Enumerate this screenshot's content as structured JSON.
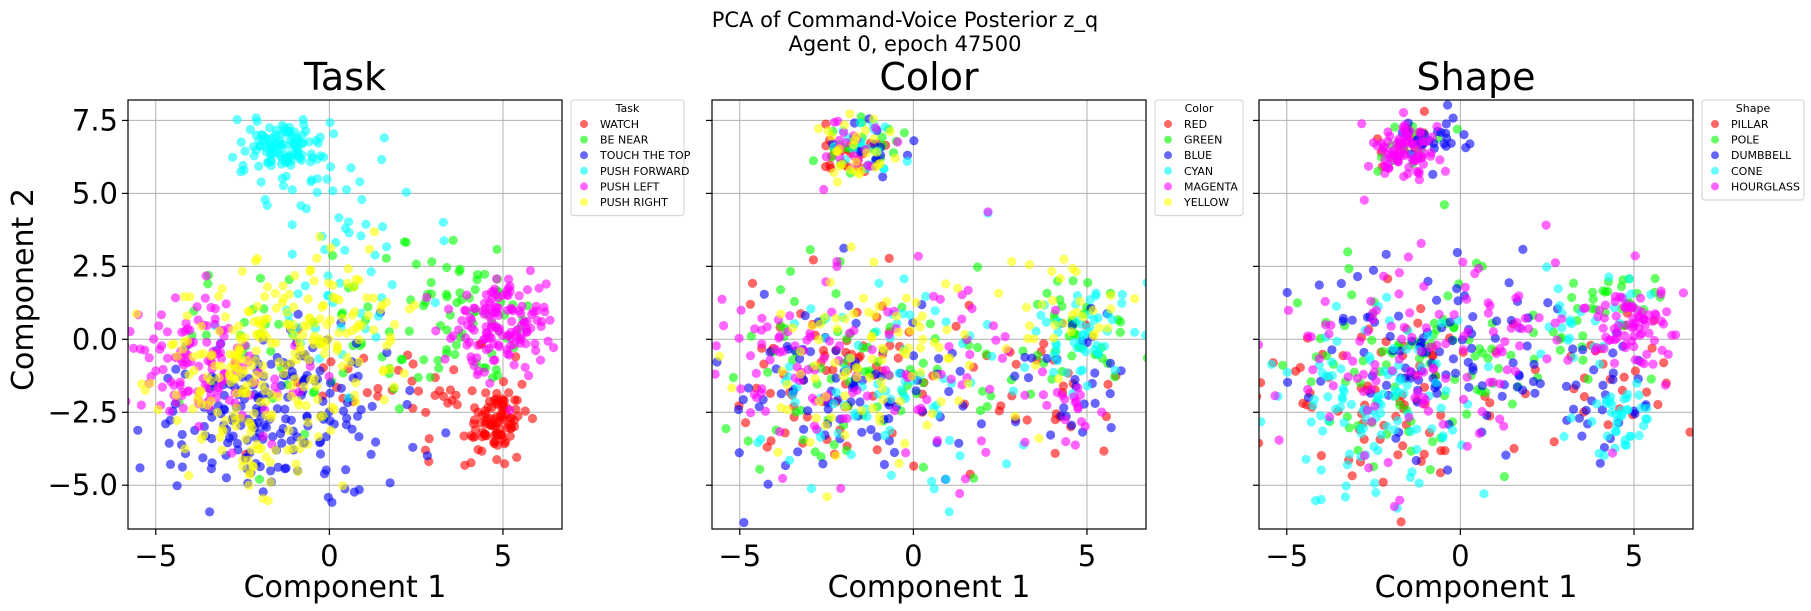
{
  "figure": {
    "title_line1": "PCA of Command-Voice Posterior z_q",
    "title_line2": "Agent 0, epoch 47500"
  },
  "chart_data": [
    {
      "type": "scatter",
      "title": "Task",
      "xlabel": "Component 1",
      "ylabel": "Component 2",
      "xlim": [
        -5.8,
        6.7
      ],
      "ylim": [
        -6.5,
        8.2
      ],
      "xticks": [
        -5,
        0,
        5
      ],
      "yticks": [
        -5.0,
        -2.5,
        0.0,
        2.5,
        5.0,
        7.5
      ],
      "ytick_labels": [
        "−5.0",
        "−2.5",
        "0.0",
        "2.5",
        "5.0",
        "7.5"
      ],
      "xtick_labels": [
        "−5",
        "0",
        "5"
      ],
      "grid": true,
      "legend": {
        "title": "Task",
        "placement": "outside-upper-right"
      },
      "series": [
        {
          "name": "WATCH",
          "color": "#ff0000",
          "clusters": [
            [
              4.8,
              -2.8,
              0.45,
              0.55,
              90
            ],
            [
              3.8,
              -2.2,
              1.0,
              1.0,
              25
            ],
            [
              1.5,
              -1.5,
              1.5,
              1.2,
              20
            ]
          ]
        },
        {
          "name": "BE NEAR",
          "color": "#00ff00",
          "clusters": [
            [
              4.0,
              1.2,
              0.8,
              0.8,
              45
            ],
            [
              1.5,
              -0.5,
              1.8,
              1.5,
              50
            ],
            [
              -2.8,
              0.5,
              1.2,
              1.3,
              20
            ]
          ]
        },
        {
          "name": "TOUCH THE TOP",
          "color": "#0000ff",
          "clusters": [
            [
              -2.2,
              -2.8,
              1.4,
              1.2,
              130
            ],
            [
              -0.5,
              -1.5,
              1.0,
              1.5,
              50
            ],
            [
              0.8,
              -3.5,
              1.0,
              1.0,
              20
            ]
          ]
        },
        {
          "name": "PUSH FORWARD",
          "color": "#00ffff",
          "clusters": [
            [
              -1.4,
              6.6,
              0.65,
              0.5,
              110
            ],
            [
              0.3,
              4.5,
              1.4,
              1.2,
              35
            ],
            [
              0.5,
              1.0,
              1.5,
              1.0,
              30
            ]
          ]
        },
        {
          "name": "PUSH LEFT",
          "color": "#ff00ff",
          "clusters": [
            [
              5.0,
              0.6,
              0.75,
              0.9,
              140
            ],
            [
              -4.0,
              -0.5,
              0.8,
              1.0,
              90
            ],
            [
              -2.5,
              -1.5,
              1.0,
              1.0,
              40
            ]
          ]
        },
        {
          "name": "PUSH RIGHT",
          "color": "#ffff00",
          "clusters": [
            [
              -0.2,
              0.3,
              1.4,
              1.3,
              130
            ],
            [
              -2.6,
              -1.5,
              1.3,
              1.4,
              120
            ],
            [
              -1.8,
              -3.8,
              0.9,
              0.8,
              30
            ]
          ]
        }
      ]
    },
    {
      "type": "scatter",
      "title": "Color",
      "xlabel": "Component 1",
      "ylabel": "",
      "xlim": [
        -5.8,
        6.7
      ],
      "ylim": [
        -6.5,
        8.2
      ],
      "xticks": [
        -5,
        0,
        5
      ],
      "xtick_labels": [
        "−5",
        "0",
        "5"
      ],
      "yticks": [
        -5.0,
        -2.5,
        0.0,
        2.5,
        5.0,
        7.5
      ],
      "grid": true,
      "legend": {
        "title": "Color",
        "placement": "outside-upper-right"
      },
      "series": [
        {
          "name": "RED",
          "color": "#ff0000",
          "clusters": [
            [
              -1.8,
              6.4,
              0.6,
              0.5,
              25
            ],
            [
              -2.0,
              -1.5,
              2.0,
              1.6,
              80
            ],
            [
              4.2,
              -2.0,
              0.9,
              1.2,
              25
            ]
          ]
        },
        {
          "name": "GREEN",
          "color": "#00ff00",
          "clusters": [
            [
              -1.4,
              6.6,
              0.6,
              0.5,
              25
            ],
            [
              5.0,
              0.3,
              0.8,
              1.0,
              40
            ],
            [
              -1.5,
              -1.0,
              2.0,
              1.8,
              80
            ]
          ]
        },
        {
          "name": "BLUE",
          "color": "#0000ff",
          "clusters": [
            [
              -1.2,
              6.5,
              0.5,
              0.5,
              15
            ],
            [
              -2.0,
              -2.0,
              1.8,
              1.6,
              90
            ],
            [
              4.5,
              -1.5,
              0.8,
              1.2,
              30
            ]
          ]
        },
        {
          "name": "CYAN",
          "color": "#00ffff",
          "clusters": [
            [
              -1.4,
              6.5,
              0.6,
              0.5,
              20
            ],
            [
              4.8,
              0.2,
              0.8,
              0.9,
              50
            ],
            [
              -0.5,
              -1.5,
              2.0,
              1.8,
              80
            ]
          ]
        },
        {
          "name": "MAGENTA",
          "color": "#ff00ff",
          "clusters": [
            [
              -1.6,
              6.6,
              0.6,
              0.5,
              20
            ],
            [
              -4.0,
              -0.5,
              0.8,
              1.0,
              40
            ],
            [
              -0.5,
              -1.0,
              2.2,
              1.8,
              70
            ],
            [
              4.5,
              -2.5,
              0.6,
              0.6,
              20
            ]
          ]
        },
        {
          "name": "YELLOW",
          "color": "#ffff00",
          "clusters": [
            [
              -1.5,
              6.5,
              0.6,
              0.5,
              30
            ],
            [
              -1.5,
              -0.8,
              2.0,
              1.6,
              100
            ],
            [
              4.5,
              0.8,
              0.9,
              0.9,
              30
            ]
          ]
        }
      ]
    },
    {
      "type": "scatter",
      "title": "Shape",
      "xlabel": "Component 1",
      "ylabel": "",
      "xlim": [
        -5.8,
        6.7
      ],
      "ylim": [
        -6.5,
        8.2
      ],
      "xticks": [
        -5,
        0,
        5
      ],
      "xtick_labels": [
        "−5",
        "0",
        "5"
      ],
      "yticks": [
        -5.0,
        -2.5,
        0.0,
        2.5,
        5.0,
        7.5
      ],
      "grid": true,
      "legend": {
        "title": "Shape",
        "placement": "outside-upper-right"
      },
      "series": [
        {
          "name": "PILLAR",
          "color": "#ff0000",
          "clusters": [
            [
              -1.6,
              6.5,
              0.5,
              0.5,
              15
            ],
            [
              -2.5,
              -2.0,
              1.8,
              1.5,
              80
            ],
            [
              4.5,
              -1.5,
              0.8,
              1.2,
              25
            ]
          ]
        },
        {
          "name": "POLE",
          "color": "#00ff00",
          "clusters": [
            [
              -1.5,
              6.6,
              0.5,
              0.5,
              15
            ],
            [
              -1.0,
              -0.8,
              2.2,
              1.8,
              100
            ],
            [
              4.2,
              1.0,
              0.9,
              0.8,
              30
            ]
          ]
        },
        {
          "name": "DUMBBELL",
          "color": "#0000ff",
          "clusters": [
            [
              -0.8,
              6.8,
              0.6,
              0.5,
              30
            ],
            [
              -0.8,
              -0.5,
              2.0,
              1.8,
              100
            ],
            [
              4.2,
              -2.0,
              0.7,
              1.0,
              30
            ]
          ]
        },
        {
          "name": "CONE",
          "color": "#00ffff",
          "clusters": [
            [
              -2.5,
              -2.0,
              1.6,
              1.6,
              110
            ],
            [
              4.5,
              -2.5,
              0.6,
              0.6,
              40
            ],
            [
              3.5,
              0.8,
              1.0,
              0.8,
              25
            ]
          ]
        },
        {
          "name": "HOURGLASS",
          "color": "#ff00ff",
          "clusters": [
            [
              -1.6,
              6.4,
              0.5,
              0.5,
              80
            ],
            [
              5.0,
              0.5,
              0.8,
              0.9,
              80
            ],
            [
              -1.0,
              -0.5,
              2.4,
              1.8,
              120
            ]
          ]
        }
      ]
    }
  ]
}
